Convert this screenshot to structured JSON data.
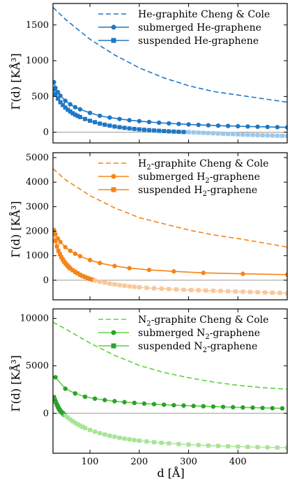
{
  "figure": {
    "xlabel": "d [Å]",
    "ylabel": "Γ(d) [KÅ³]"
  },
  "chart_data": [
    {
      "type": "line",
      "xlim": [
        25,
        500
      ],
      "ylim": [
        -150,
        1800
      ],
      "x_ticks": [
        100,
        200,
        300,
        400
      ],
      "y_ticks": [
        0,
        500,
        1000,
        1500
      ],
      "y_tick_labels": [
        "0",
        "500",
        "1000",
        "1500"
      ],
      "legend_position": "top-right",
      "colors": {
        "series": "#1f77c4",
        "faded": "#9cc7ea",
        "zero_line": "#999999"
      },
      "series": [
        {
          "name": "He-graphite Cheng & Cole",
          "style": "dashed",
          "x": [
            25,
            50,
            100,
            150,
            200,
            250,
            300,
            350,
            400,
            450,
            500
          ],
          "y": [
            1745,
            1580,
            1300,
            1080,
            900,
            760,
            650,
            570,
            520,
            470,
            420
          ]
        },
        {
          "name": "submerged He-graphene",
          "style": "solid-circle",
          "x": [
            27,
            30,
            35,
            40,
            50,
            60,
            70,
            80,
            100,
            120,
            140,
            160,
            180,
            200,
            220,
            240,
            260,
            280,
            300,
            320,
            340,
            360,
            380,
            400,
            420,
            440,
            460,
            480,
            500
          ],
          "y": [
            700,
            620,
            560,
            510,
            440,
            390,
            350,
            320,
            270,
            230,
            205,
            185,
            168,
            155,
            143,
            133,
            124,
            116,
            109,
            103,
            97,
            92,
            88,
            84,
            80,
            77,
            74,
            71,
            68
          ]
        },
        {
          "name": "suspended He-graphene",
          "style": "solid-square",
          "x": [
            27,
            30,
            35,
            40,
            45,
            50,
            55,
            60,
            65,
            70,
            75,
            80,
            90,
            100,
            110,
            120,
            130,
            140,
            150,
            160,
            170,
            180,
            190,
            200,
            210,
            220,
            230,
            240,
            250,
            260,
            270,
            280,
            290,
            300
          ],
          "y": [
            600,
            530,
            470,
            420,
            380,
            345,
            315,
            290,
            265,
            245,
            228,
            212,
            185,
            160,
            140,
            120,
            105,
            92,
            80,
            70,
            61,
            53,
            46,
            40,
            34,
            29,
            24,
            20,
            16,
            12,
            9,
            6,
            3,
            1
          ]
        },
        {
          "name": "",
          "style": "faded-square",
          "x": [
            300,
            310,
            320,
            330,
            340,
            350,
            360,
            370,
            380,
            390,
            400,
            410,
            420,
            430,
            440,
            450,
            460,
            470,
            480,
            490,
            500
          ],
          "y": [
            0,
            -3,
            -6,
            -9,
            -12,
            -15,
            -18,
            -21,
            -24,
            -27,
            -30,
            -33,
            -36,
            -38,
            -40,
            -42,
            -44,
            -46,
            -48,
            -50,
            -52
          ]
        }
      ]
    },
    {
      "type": "line",
      "xlim": [
        25,
        500
      ],
      "ylim": [
        -800,
        5200
      ],
      "x_ticks": [
        100,
        200,
        300,
        400
      ],
      "y_ticks": [
        0,
        1000,
        2000,
        3000,
        4000,
        5000
      ],
      "y_tick_labels": [
        "0",
        "1000",
        "2000",
        "3000",
        "4000",
        "5000"
      ],
      "legend_position": "top-right",
      "colors": {
        "series": "#f58518",
        "faded": "#f9c79a",
        "zero_line": "#999999"
      },
      "series": [
        {
          "name": "H2-graphite Cheng & Cole",
          "style": "dashed",
          "x": [
            25,
            50,
            100,
            150,
            200,
            250,
            300,
            350,
            400,
            450,
            500
          ],
          "y": [
            4550,
            4100,
            3450,
            2950,
            2550,
            2300,
            2050,
            1850,
            1700,
            1530,
            1350
          ]
        },
        {
          "name": "submerged H2-graphene",
          "style": "solid-circle",
          "x": [
            27,
            30,
            35,
            40,
            50,
            60,
            70,
            80,
            100,
            120,
            150,
            180,
            220,
            270,
            330,
            410,
            500
          ],
          "y": [
            2050,
            1880,
            1700,
            1560,
            1350,
            1200,
            1080,
            980,
            820,
            700,
            580,
            490,
            420,
            360,
            300,
            260,
            230
          ]
        },
        {
          "name": "suspended H2-graphene",
          "style": "solid-square",
          "x": [
            27,
            30,
            33,
            36,
            39,
            42,
            45,
            48,
            51,
            54,
            57,
            60,
            65,
            70,
            75,
            80,
            85,
            90,
            95,
            100,
            105
          ],
          "y": [
            1900,
            1600,
            1380,
            1200,
            1060,
            940,
            840,
            750,
            670,
            600,
            540,
            480,
            410,
            340,
            280,
            220,
            170,
            130,
            90,
            50,
            20
          ]
        },
        {
          "name": "",
          "style": "faded-square",
          "x": [
            110,
            120,
            130,
            140,
            150,
            160,
            170,
            180,
            190,
            200,
            215,
            230,
            245,
            260,
            275,
            290,
            305,
            320,
            335,
            350,
            365,
            380,
            395,
            410,
            425,
            440,
            455,
            470,
            485,
            500
          ],
          "y": [
            -20,
            -60,
            -100,
            -140,
            -170,
            -200,
            -225,
            -250,
            -270,
            -290,
            -310,
            -330,
            -345,
            -360,
            -375,
            -390,
            -400,
            -410,
            -420,
            -430,
            -440,
            -450,
            -460,
            -470,
            -480,
            -490,
            -500,
            -510,
            -520,
            -530
          ]
        }
      ]
    },
    {
      "type": "line",
      "xlim": [
        25,
        500
      ],
      "ylim": [
        -4200,
        11000
      ],
      "x_ticks": [
        100,
        200,
        300,
        400
      ],
      "x_tick_labels": [
        "100",
        "200",
        "300",
        "400"
      ],
      "y_ticks": [
        0,
        5000,
        10000
      ],
      "y_tick_labels": [
        "0",
        "5000",
        "10000"
      ],
      "legend_position": "top-right",
      "colors": {
        "series": "#2ca02c",
        "line": "#5ed13f",
        "faded": "#a7e496",
        "zero_line": "#999999"
      },
      "series": [
        {
          "name": "N2-graphite Cheng & Cole",
          "style": "dashed",
          "x": [
            25,
            50,
            100,
            150,
            200,
            250,
            300,
            350,
            400,
            450,
            500
          ],
          "y": [
            9600,
            8900,
            7400,
            6100,
            5050,
            4300,
            3750,
            3300,
            2950,
            2700,
            2550
          ]
        },
        {
          "name": "submerged N2-graphene",
          "style": "solid-circle",
          "x": [
            30,
            50,
            70,
            90,
            110,
            130,
            150,
            170,
            190,
            210,
            230,
            250,
            270,
            290,
            310,
            330,
            350,
            370,
            390,
            410,
            430,
            450,
            470,
            490
          ],
          "y": [
            3800,
            2600,
            2100,
            1750,
            1550,
            1400,
            1280,
            1180,
            1100,
            1030,
            970,
            910,
            860,
            820,
            780,
            750,
            710,
            680,
            650,
            620,
            600,
            570,
            550,
            530
          ]
        },
        {
          "name": "suspended N2-graphene",
          "style": "solid-square",
          "x": [
            27,
            29,
            31,
            33,
            35,
            37,
            39,
            42,
            45,
            48
          ],
          "y": [
            1700,
            1400,
            1150,
            900,
            700,
            500,
            330,
            150,
            0,
            -150
          ]
        },
        {
          "name": "",
          "style": "faded-square",
          "x": [
            50,
            55,
            60,
            65,
            70,
            75,
            80,
            85,
            90,
            100,
            110,
            120,
            130,
            140,
            150,
            160,
            170,
            180,
            190,
            200,
            215,
            230,
            245,
            260,
            280,
            300,
            320,
            340,
            360,
            380,
            400,
            420,
            440,
            460,
            480,
            500
          ],
          "y": [
            -250,
            -450,
            -650,
            -830,
            -1000,
            -1150,
            -1290,
            -1420,
            -1540,
            -1750,
            -1930,
            -2090,
            -2230,
            -2360,
            -2470,
            -2570,
            -2660,
            -2740,
            -2810,
            -2880,
            -2960,
            -3040,
            -3100,
            -3160,
            -3230,
            -3290,
            -3340,
            -3390,
            -3430,
            -3470,
            -3500,
            -3530,
            -3560,
            -3580,
            -3600,
            -3620
          ]
        }
      ]
    }
  ]
}
